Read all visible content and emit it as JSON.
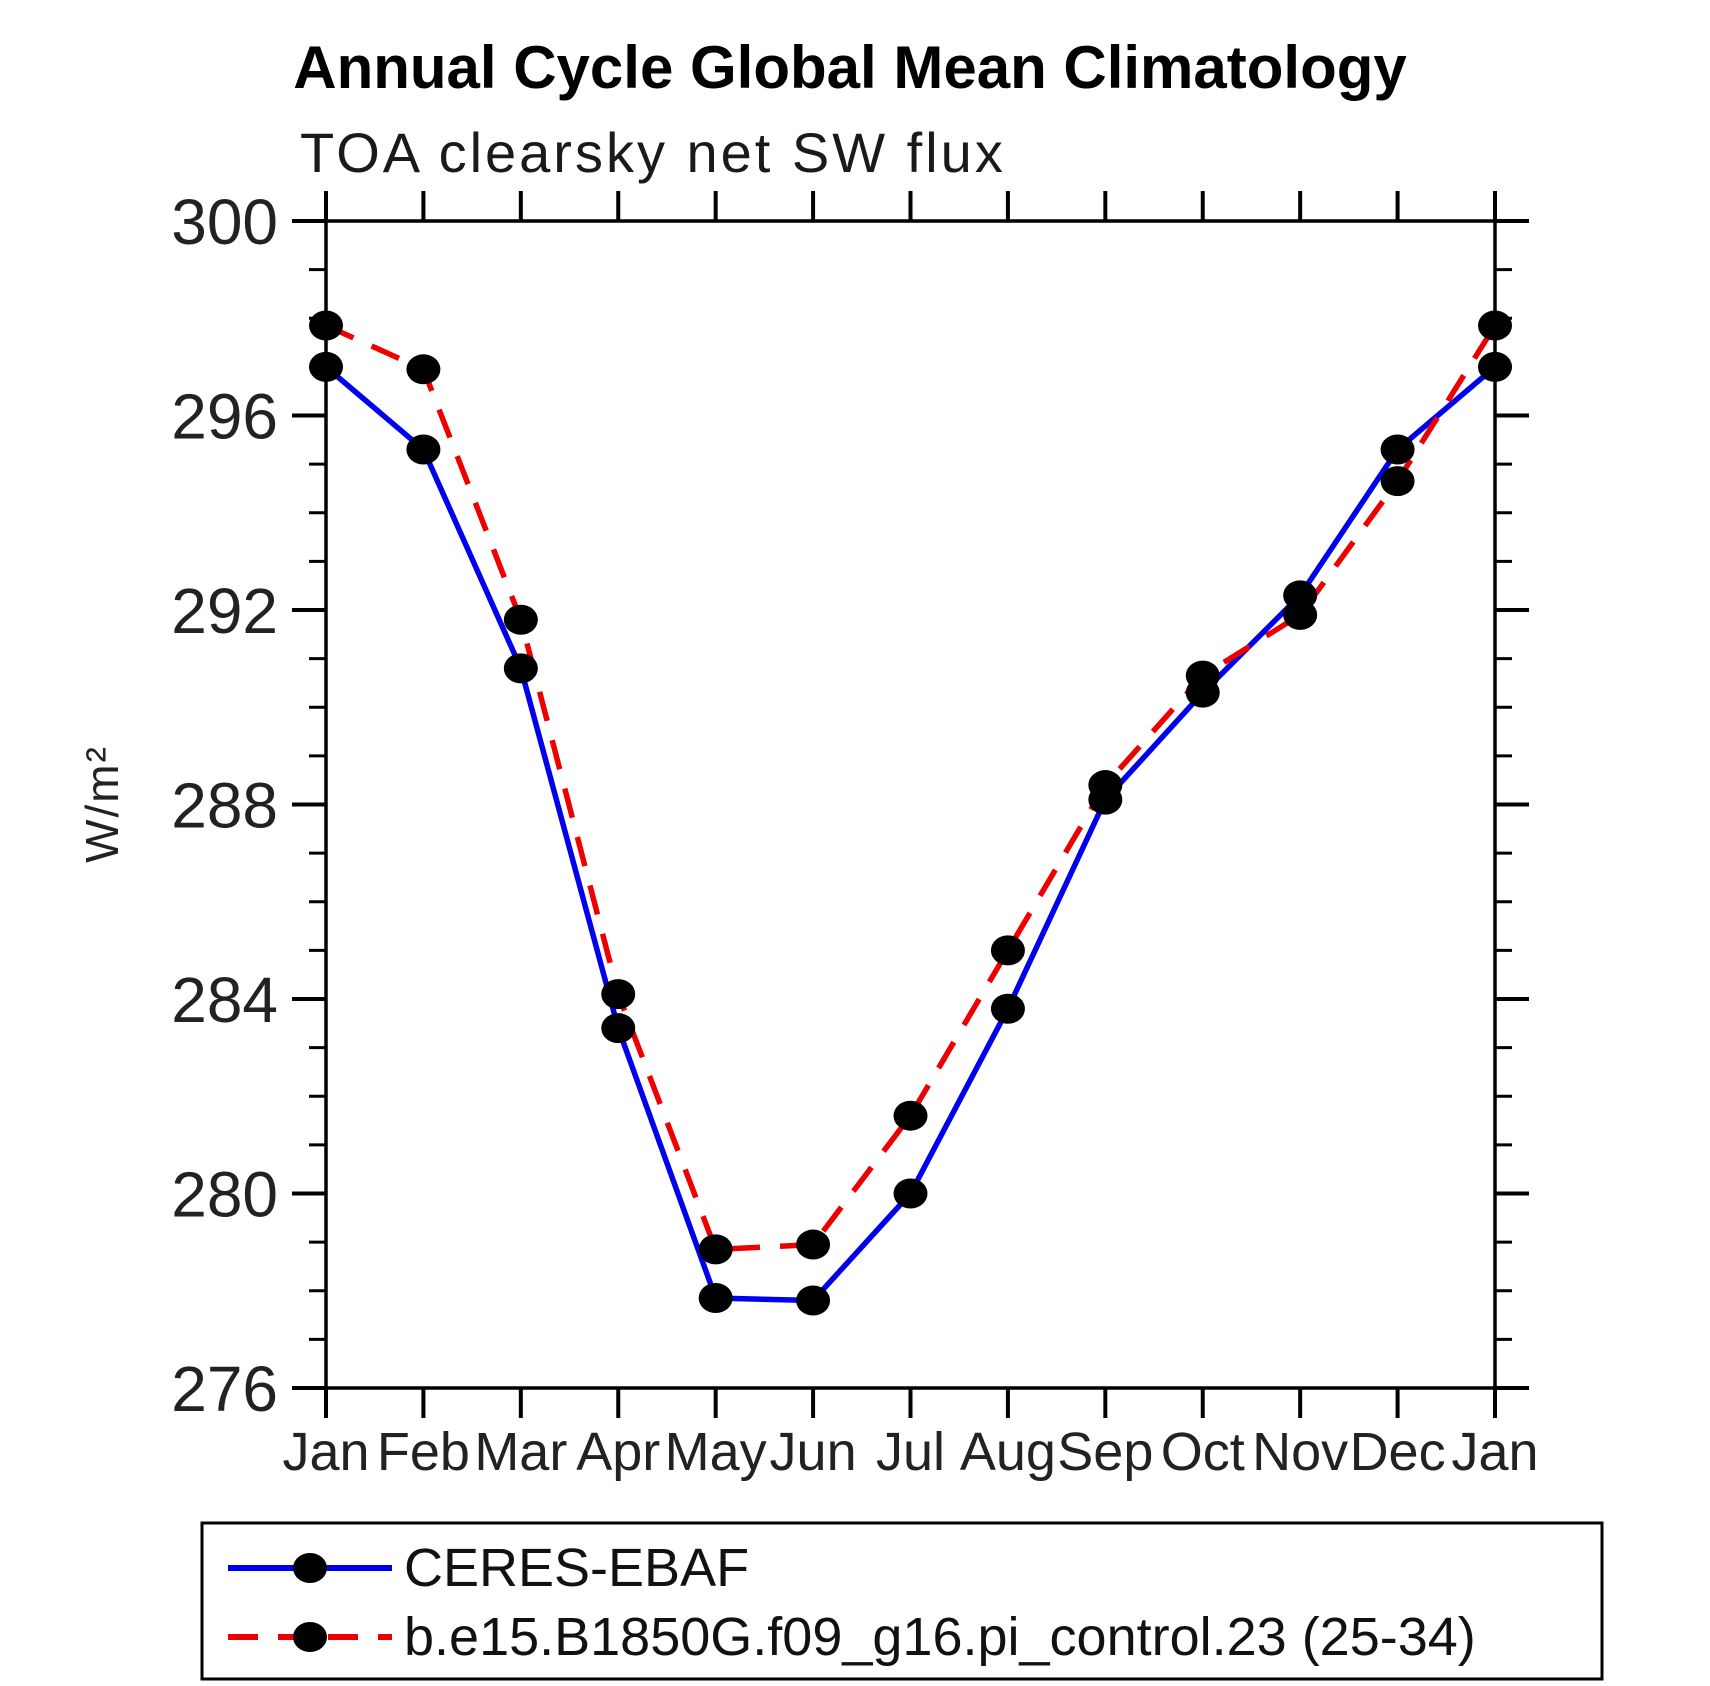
{
  "chart_data": {
    "type": "line",
    "title": "Annual Cycle Global Mean Climatology",
    "subtitle": "TOA clearsky net SW flux",
    "ylabel": "W/m²",
    "xlabel": "",
    "x_tick_labels": [
      "Jan",
      "Feb",
      "Mar",
      "Apr",
      "May",
      "Jun",
      "Jul",
      "Aug",
      "Sep",
      "Oct",
      "Nov",
      "Dec",
      "Jan"
    ],
    "ylim": [
      276,
      300
    ],
    "y_major_ticks": [
      276,
      280,
      284,
      288,
      292,
      296,
      300
    ],
    "y_minor_step": 1,
    "grid": false,
    "legend_position": "bottom",
    "marker_color": "#000000",
    "axis_color": "#000000",
    "series": [
      {
        "name": "CERES-EBAF",
        "color": "#0000ee",
        "style": "solid",
        "marker": "circle",
        "values": [
          297.0,
          295.3,
          290.8,
          283.4,
          277.85,
          277.8,
          280.0,
          283.8,
          288.1,
          290.3,
          292.3,
          295.3,
          297.0
        ]
      },
      {
        "name": "b.e15.B1850G.f09_g16.pi_control.23 (25-34)",
        "color": "#ee0000",
        "style": "dashed",
        "marker": "circle",
        "values": [
          297.85,
          296.95,
          291.8,
          284.1,
          278.85,
          278.95,
          281.6,
          285.0,
          288.4,
          290.65,
          291.9,
          294.65,
          297.85
        ]
      }
    ]
  }
}
